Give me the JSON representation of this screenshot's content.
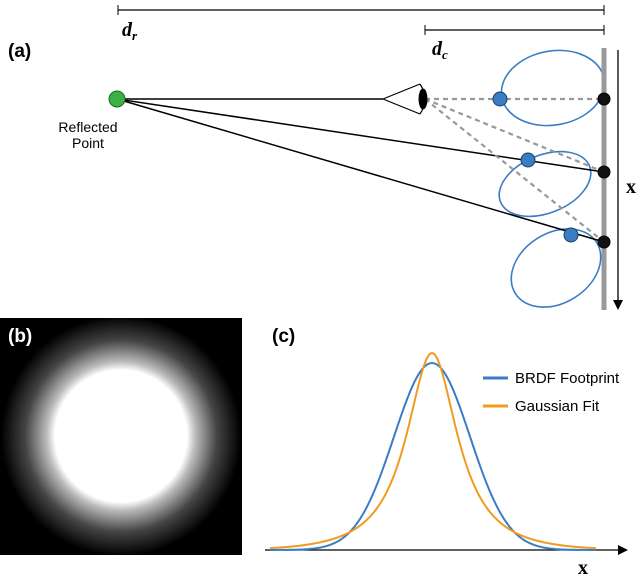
{
  "panel_a": {
    "label": "(a)",
    "dr": {
      "main": "d",
      "sub": "r"
    },
    "dc": {
      "main": "d",
      "sub": "c"
    },
    "reflected_point": [
      "Reflected",
      "Point"
    ],
    "axis_label": "x"
  },
  "panel_b": {
    "label": "(b)"
  },
  "panel_c": {
    "label": "(c)",
    "axis_label": "x",
    "legend": [
      {
        "name": "BRDF Footprint",
        "color": "#3a7dc4"
      },
      {
        "name": "Gaussian Fit",
        "color": "#f29a1e"
      }
    ]
  }
}
